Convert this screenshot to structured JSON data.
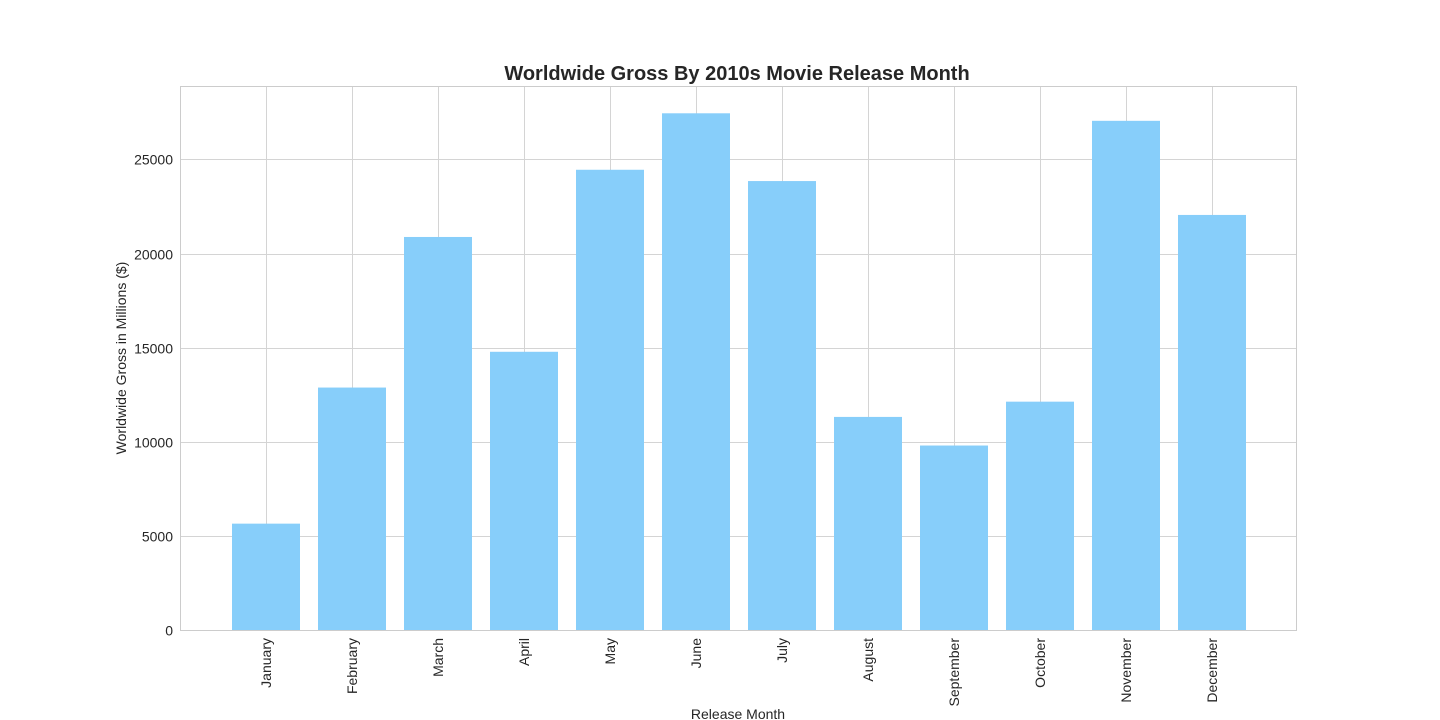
{
  "chart_data": {
    "type": "bar",
    "title": "Worldwide Gross By 2010s Movie Release Month",
    "xlabel": "Release Month",
    "ylabel": "Worldwide Gross in Millions ($)",
    "categories": [
      "January",
      "February",
      "March",
      "April",
      "May",
      "June",
      "July",
      "August",
      "September",
      "October",
      "November",
      "December"
    ],
    "values": [
      5650,
      12880,
      20880,
      14780,
      24450,
      27450,
      23850,
      11320,
      9800,
      12130,
      27050,
      22050
    ],
    "ylim": [
      0,
      28900
    ],
    "yticks": [
      0,
      5000,
      10000,
      15000,
      20000,
      25000
    ],
    "ytick_labels": [
      "0",
      "5000",
      "10000",
      "15000",
      "20000",
      "25000"
    ],
    "grid": true,
    "bar_color": "#87cefa",
    "grid_color": "#d4d4d4",
    "text_color": "#262626"
  }
}
